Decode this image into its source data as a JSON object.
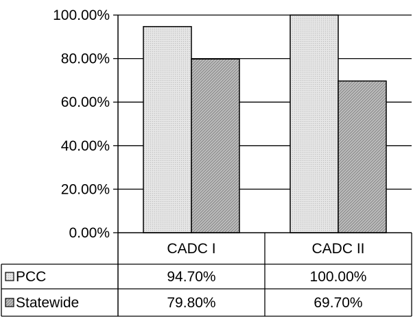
{
  "chart_data": {
    "type": "bar",
    "title": "",
    "xlabel": "",
    "ylabel": "",
    "categories": [
      "CADC I",
      "CADC II"
    ],
    "series": [
      {
        "name": "PCC",
        "values": [
          94.7,
          100.0
        ],
        "labels": [
          "94.70%",
          "100.00%"
        ],
        "pattern": "light-dotted"
      },
      {
        "name": "Statewide",
        "values": [
          79.8,
          69.7
        ],
        "labels": [
          "79.80%",
          "69.70%"
        ],
        "pattern": "dark-hatched"
      }
    ],
    "ylim": [
      0,
      100
    ],
    "y_ticks": [
      0,
      20,
      40,
      60,
      80,
      100
    ],
    "y_tick_labels": [
      "0.00%",
      "20.00%",
      "40.00%",
      "60.00%",
      "80.00%",
      "100.00%"
    ],
    "grid": "horizontal",
    "legend": "data-table-left",
    "data_table": true
  }
}
